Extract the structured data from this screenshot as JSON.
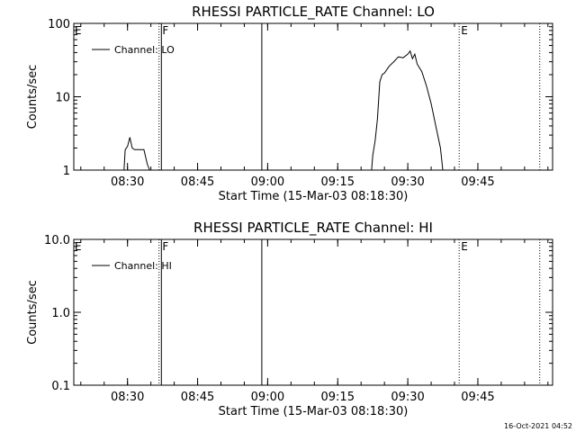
{
  "footer": {
    "timestamp": "16-Oct-2021 04:52"
  },
  "chart_data": [
    {
      "type": "line",
      "title": "RHESSI PARTICLE_RATE Channel: LO",
      "xlabel": "Start Time (15-Mar-03 08:18:30)",
      "ylabel": "Counts/sec",
      "yscale": "log",
      "ylim": [
        1,
        100
      ],
      "xlim": [
        "08:18:30",
        "10:01:00"
      ],
      "x_ticks": [
        "08:30",
        "08:45",
        "09:00",
        "09:15",
        "09:30",
        "09:45"
      ],
      "y_ticks": [
        "1",
        "10",
        "100"
      ],
      "legend": {
        "placement": "top-left",
        "entries": [
          "Channel: LO"
        ]
      },
      "flag_labels": [
        "E",
        "F",
        "E"
      ],
      "series": [
        {
          "name": "Channel: LO",
          "color": "#000000",
          "x": [
            "08:29:15",
            "08:29:30",
            "08:30:00",
            "08:30:30",
            "08:31:00",
            "08:31:30",
            "08:32:00",
            "08:32:30",
            "08:33:30",
            "08:34:15",
            "08:34:45",
            "09:22:15",
            "09:22:30",
            "09:23:00",
            "09:23:30",
            "09:24:00",
            "09:24:30",
            "09:25:00",
            "09:26:00",
            "09:27:00",
            "09:28:00",
            "09:29:00",
            "09:30:00",
            "09:30:30",
            "09:31:00",
            "09:31:30",
            "09:32:00",
            "09:33:00",
            "09:34:00",
            "09:35:00",
            "09:36:00",
            "09:37:00",
            "09:37:30"
          ],
          "y": [
            1.0,
            1.9,
            2.1,
            2.8,
            2.0,
            1.9,
            1.9,
            1.9,
            1.9,
            1.2,
            1.0,
            1.0,
            1.6,
            2.5,
            5.0,
            16.0,
            20.0,
            21.0,
            26.0,
            30.0,
            35.0,
            34.0,
            38.0,
            42.0,
            33.0,
            38.0,
            28.0,
            22.0,
            14.0,
            8.0,
            4.0,
            2.0,
            1.0
          ]
        }
      ],
      "vlines": [
        {
          "time": "08:36:45",
          "style": "dotted"
        },
        {
          "time": "08:37:15",
          "style": "solid"
        },
        {
          "time": "08:58:45",
          "style": "solid"
        },
        {
          "time": "09:41:00",
          "style": "dotted"
        },
        {
          "time": "09:58:15",
          "style": "dotted"
        }
      ]
    },
    {
      "type": "line",
      "title": "RHESSI PARTICLE_RATE Channel: HI",
      "xlabel": "Start Time (15-Mar-03 08:18:30)",
      "ylabel": "Counts/sec",
      "yscale": "log",
      "ylim": [
        0.1,
        10
      ],
      "xlim": [
        "08:18:30",
        "10:01:00"
      ],
      "x_ticks": [
        "08:30",
        "08:45",
        "09:00",
        "09:15",
        "09:30",
        "09:45"
      ],
      "y_ticks": [
        "0.1",
        "1.0",
        "10.0"
      ],
      "legend": {
        "placement": "top-left",
        "entries": [
          "Channel: HI"
        ]
      },
      "flag_labels": [
        "E",
        "F",
        "E"
      ],
      "series": [
        {
          "name": "Channel: HI",
          "color": "#000000",
          "x": [],
          "y": []
        }
      ],
      "vlines": [
        {
          "time": "08:36:45",
          "style": "dotted"
        },
        {
          "time": "08:37:15",
          "style": "solid"
        },
        {
          "time": "08:58:45",
          "style": "solid"
        },
        {
          "time": "09:41:00",
          "style": "dotted"
        },
        {
          "time": "09:58:15",
          "style": "dotted"
        }
      ]
    }
  ]
}
